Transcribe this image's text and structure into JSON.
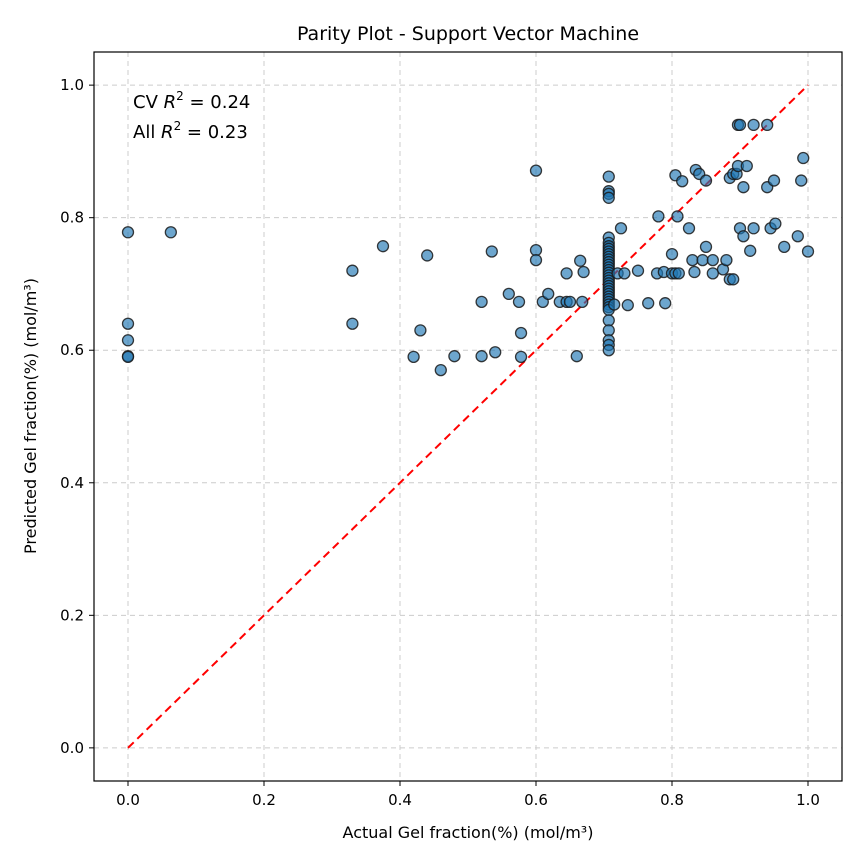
{
  "chart_data": {
    "type": "scatter",
    "title": "Parity Plot - Support Vector Machine",
    "xlabel": "Actual Gel fraction(%) (mol/m³)",
    "ylabel": "Predicted Gel fraction(%) (mol/m³)",
    "xlim": [
      -0.05,
      1.05
    ],
    "ylim": [
      -0.05,
      1.05
    ],
    "xticks": [
      "0.0",
      "0.2",
      "0.4",
      "0.6",
      "0.8",
      "1.0"
    ],
    "yticks": [
      "0.0",
      "0.2",
      "0.4",
      "0.6",
      "0.8",
      "1.0"
    ],
    "grid": true,
    "annotations": {
      "cv_prefix": "CV ",
      "cv_value": " = 0.24",
      "all_prefix": "All ",
      "all_value": " = 0.23",
      "r_symbol": "R",
      "r_exp": "2"
    },
    "reference_line": {
      "x": [
        0,
        1
      ],
      "y": [
        0,
        1
      ],
      "color": "#ff0000",
      "style": "dashed"
    },
    "marker_color": "#1f77b4",
    "marker_edge": "#1a1a1a",
    "points": [
      [
        0.0,
        0.778
      ],
      [
        0.0,
        0.64
      ],
      [
        0.0,
        0.615
      ],
      [
        0.0,
        0.591
      ],
      [
        0.0,
        0.59
      ],
      [
        0.063,
        0.778
      ],
      [
        0.33,
        0.72
      ],
      [
        0.33,
        0.64
      ],
      [
        0.375,
        0.757
      ],
      [
        0.42,
        0.59
      ],
      [
        0.43,
        0.63
      ],
      [
        0.44,
        0.743
      ],
      [
        0.46,
        0.57
      ],
      [
        0.48,
        0.591
      ],
      [
        0.52,
        0.673
      ],
      [
        0.52,
        0.591
      ],
      [
        0.535,
        0.749
      ],
      [
        0.54,
        0.597
      ],
      [
        0.56,
        0.685
      ],
      [
        0.575,
        0.673
      ],
      [
        0.578,
        0.626
      ],
      [
        0.578,
        0.59
      ],
      [
        0.6,
        0.871
      ],
      [
        0.6,
        0.751
      ],
      [
        0.6,
        0.736
      ],
      [
        0.61,
        0.673
      ],
      [
        0.618,
        0.685
      ],
      [
        0.635,
        0.673
      ],
      [
        0.645,
        0.673
      ],
      [
        0.645,
        0.716
      ],
      [
        0.65,
        0.673
      ],
      [
        0.66,
        0.591
      ],
      [
        0.665,
        0.735
      ],
      [
        0.668,
        0.673
      ],
      [
        0.67,
        0.718
      ],
      [
        0.707,
        0.862
      ],
      [
        0.707,
        0.84
      ],
      [
        0.707,
        0.836
      ],
      [
        0.707,
        0.83
      ],
      [
        0.707,
        0.77
      ],
      [
        0.707,
        0.762
      ],
      [
        0.707,
        0.757
      ],
      [
        0.707,
        0.753
      ],
      [
        0.707,
        0.749
      ],
      [
        0.707,
        0.745
      ],
      [
        0.707,
        0.741
      ],
      [
        0.707,
        0.737
      ],
      [
        0.707,
        0.733
      ],
      [
        0.707,
        0.729
      ],
      [
        0.707,
        0.725
      ],
      [
        0.707,
        0.721
      ],
      [
        0.707,
        0.717
      ],
      [
        0.707,
        0.713
      ],
      [
        0.707,
        0.709
      ],
      [
        0.707,
        0.705
      ],
      [
        0.707,
        0.701
      ],
      [
        0.707,
        0.697
      ],
      [
        0.707,
        0.693
      ],
      [
        0.707,
        0.689
      ],
      [
        0.707,
        0.685
      ],
      [
        0.707,
        0.681
      ],
      [
        0.707,
        0.677
      ],
      [
        0.707,
        0.673
      ],
      [
        0.707,
        0.669
      ],
      [
        0.707,
        0.665
      ],
      [
        0.707,
        0.661
      ],
      [
        0.707,
        0.645
      ],
      [
        0.707,
        0.63
      ],
      [
        0.707,
        0.615
      ],
      [
        0.707,
        0.608
      ],
      [
        0.707,
        0.6
      ],
      [
        0.715,
        0.669
      ],
      [
        0.72,
        0.716
      ],
      [
        0.725,
        0.784
      ],
      [
        0.73,
        0.716
      ],
      [
        0.735,
        0.668
      ],
      [
        0.75,
        0.72
      ],
      [
        0.765,
        0.671
      ],
      [
        0.778,
        0.716
      ],
      [
        0.78,
        0.802
      ],
      [
        0.788,
        0.718
      ],
      [
        0.79,
        0.671
      ],
      [
        0.8,
        0.745
      ],
      [
        0.8,
        0.716
      ],
      [
        0.805,
        0.716
      ],
      [
        0.805,
        0.864
      ],
      [
        0.808,
        0.802
      ],
      [
        0.81,
        0.716
      ],
      [
        0.815,
        0.855
      ],
      [
        0.825,
        0.784
      ],
      [
        0.83,
        0.736
      ],
      [
        0.833,
        0.718
      ],
      [
        0.835,
        0.872
      ],
      [
        0.84,
        0.866
      ],
      [
        0.845,
        0.736
      ],
      [
        0.85,
        0.856
      ],
      [
        0.85,
        0.756
      ],
      [
        0.86,
        0.716
      ],
      [
        0.86,
        0.736
      ],
      [
        0.875,
        0.722
      ],
      [
        0.88,
        0.736
      ],
      [
        0.885,
        0.707
      ],
      [
        0.885,
        0.86
      ],
      [
        0.89,
        0.707
      ],
      [
        0.89,
        0.866
      ],
      [
        0.895,
        0.866
      ],
      [
        0.897,
        0.878
      ],
      [
        0.897,
        0.94
      ],
      [
        0.9,
        0.94
      ],
      [
        0.9,
        0.784
      ],
      [
        0.905,
        0.772
      ],
      [
        0.905,
        0.846
      ],
      [
        0.91,
        0.878
      ],
      [
        0.915,
        0.75
      ],
      [
        0.92,
        0.784
      ],
      [
        0.92,
        0.94
      ],
      [
        0.94,
        0.94
      ],
      [
        0.94,
        0.846
      ],
      [
        0.945,
        0.784
      ],
      [
        0.95,
        0.856
      ],
      [
        0.952,
        0.791
      ],
      [
        0.965,
        0.756
      ],
      [
        0.985,
        0.772
      ],
      [
        0.99,
        0.856
      ],
      [
        0.993,
        0.89
      ],
      [
        1.0,
        0.749
      ]
    ]
  }
}
